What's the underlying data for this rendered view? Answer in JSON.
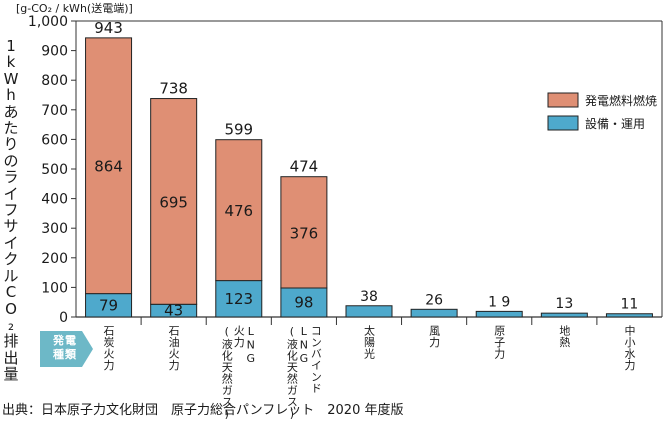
{
  "chart_data": {
    "type": "bar",
    "stacked": true,
    "unit_label": "[g-CO₂ / kWh(送電端)]",
    "ylabel": "1kWhあたりのライフサイクルCO₂排出量",
    "ylim": [
      0,
      1000
    ],
    "yticks": [
      "0",
      "100",
      "200",
      "300",
      "400",
      "500",
      "600",
      "700",
      "800",
      "900",
      "1,000"
    ],
    "ytick_values": [
      0,
      100,
      200,
      300,
      400,
      500,
      600,
      700,
      800,
      900,
      1000
    ],
    "xlabel": "発電種類",
    "categories": [
      "石炭火力",
      "石油火力",
      "LNG火力(液化天然ガス)",
      "LNGコンバインド(液化天然ガス)",
      "太陽光",
      "風力",
      "原子力",
      "地熱",
      "中小水力"
    ],
    "category_lines": [
      [
        "石炭火力"
      ],
      [
        "石油火力"
      ],
      [
        "LNG",
        "火力",
        "(液化天然ガス)"
      ],
      [
        "コンバインド",
        "LNG",
        "(液化天然ガス)"
      ],
      [
        "太陽光"
      ],
      [
        "風力"
      ],
      [
        "原子力"
      ],
      [
        "地熱"
      ],
      [
        "中小水力"
      ]
    ],
    "series": [
      {
        "name": "設備・運用",
        "color": "#4ea9cc",
        "values": [
          79,
          43,
          123,
          98,
          38,
          26,
          19,
          13,
          11
        ]
      },
      {
        "name": "発電燃料燃焼",
        "color": "#df8f74",
        "values": [
          864,
          695,
          476,
          376,
          null,
          null,
          null,
          null,
          null
        ]
      }
    ],
    "totals": [
      943,
      738,
      599,
      474,
      null,
      null,
      null,
      null,
      null
    ],
    "bottom_labels": [
      "79",
      "43",
      "123",
      "98",
      "38",
      "26",
      "1 9",
      "13",
      "11"
    ],
    "fuel_labels": [
      "864",
      "695",
      "476",
      "376"
    ],
    "total_labels": [
      "943",
      "738",
      "599",
      "474"
    ],
    "legend": [
      "発電燃料燃焼",
      "設備・運用"
    ],
    "legend_position": "right"
  },
  "badge": {
    "line1": "発電",
    "line2": "種類"
  },
  "source": "出典：日本原子力文化財団　原子力総合パンフレット　2020 年度版"
}
